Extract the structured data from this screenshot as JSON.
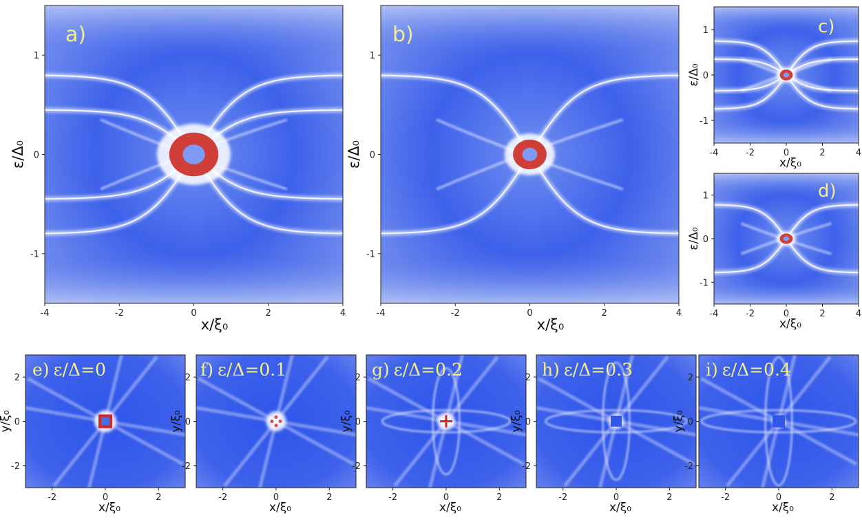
{
  "chart_data": [
    {
      "type": "heatmap",
      "panel": "a)",
      "xlabel": "x/ξ₀",
      "ylabel": "ε/Δ₀",
      "xlim": [
        -4,
        4
      ],
      "ylim": [
        -1.5,
        1.5
      ],
      "xticks": [
        "-4",
        "-2",
        "0",
        "2",
        "4"
      ],
      "yticks": [
        "1",
        "0",
        "-1"
      ],
      "bright_features": [
        {
          "shape": "eye",
          "cut": 0.8
        },
        {
          "shape": "eye",
          "cut": 0.45
        }
      ],
      "center_red_region_extent": 0.22
    },
    {
      "type": "heatmap",
      "panel": "b)",
      "xlabel": "x/ξ₀",
      "ylabel": "ε/Δ₀",
      "xlim": [
        -4,
        4
      ],
      "ylim": [
        -1.5,
        1.5
      ],
      "xticks": [
        "-4",
        "-2",
        "0",
        "2",
        "4"
      ],
      "yticks": [
        "1",
        "0",
        "-1"
      ],
      "bright_features": [
        {
          "shape": "eye",
          "cut": 0.8
        }
      ],
      "center_red_region_extent": 0.15
    },
    {
      "type": "heatmap",
      "panel": "c)",
      "xlabel": "x/ξ₀",
      "ylabel": "ε/Δ₀",
      "xlim": [
        -4,
        4
      ],
      "ylim": [
        -1.5,
        1.5
      ],
      "xticks": [
        "-4",
        "-2",
        "0",
        "2",
        "4"
      ],
      "yticks": [
        "1",
        "0",
        "-1"
      ],
      "bright_features": [
        {
          "shape": "eye",
          "cut": 0.75
        },
        {
          "shape": "eye",
          "cut": 0.35
        }
      ],
      "center_red_region_extent": 0.12
    },
    {
      "type": "heatmap",
      "panel": "d)",
      "xlabel": "x/ξ₀",
      "ylabel": "ε/Δ₀",
      "xlim": [
        -4,
        4
      ],
      "ylim": [
        -1.5,
        1.5
      ],
      "xticks": [
        "-4",
        "-2",
        "0",
        "2",
        "4"
      ],
      "yticks": [
        "1",
        "0",
        "-1"
      ],
      "bright_features": [
        {
          "shape": "eye",
          "cut": 0.78
        }
      ],
      "center_red_region_extent": 0.12
    },
    {
      "type": "heatmap",
      "panel": "e)",
      "label": "ε/Δ=0",
      "energy": 0,
      "xlabel": "x/ξ₀",
      "ylabel": "y/ξ₀",
      "xlim": [
        -3,
        3
      ],
      "ylim": [
        -3,
        3
      ],
      "xticks": [
        "-2",
        "0",
        "2"
      ],
      "yticks": [
        "2",
        "0",
        "-2"
      ],
      "center": "red ring around blue core"
    },
    {
      "type": "heatmap",
      "panel": "f)",
      "label": "ε/Δ=0.1",
      "energy": 0.1,
      "xlabel": "x/ξ₀",
      "ylabel": "y/ξ₀",
      "xlim": [
        -3,
        3
      ],
      "ylim": [
        -3,
        3
      ],
      "xticks": [
        "-2",
        "0",
        "2"
      ],
      "yticks": [
        "2",
        "0",
        "-2"
      ],
      "center": "faint red dots"
    },
    {
      "type": "heatmap",
      "panel": "g)",
      "label": "ε/Δ=0.2",
      "energy": 0.2,
      "xlabel": "x/ξ₀",
      "ylabel": "y/ξ₀",
      "xlim": [
        -3,
        3
      ],
      "ylim": [
        -3,
        3
      ],
      "xticks": [
        "-2",
        "0",
        "2"
      ],
      "yticks": [
        "2",
        "0",
        "-2"
      ],
      "center": "red cross"
    },
    {
      "type": "heatmap",
      "panel": "h)",
      "label": "ε/Δ=0.3",
      "energy": 0.3,
      "xlabel": "x/ξ₀",
      "ylabel": "y/ξ₀",
      "xlim": [
        -3,
        3
      ],
      "ylim": [
        -3,
        3
      ],
      "xticks": [
        "-2",
        "0",
        "2"
      ],
      "yticks": [
        "2",
        "0",
        "-2"
      ],
      "center": "blue core"
    },
    {
      "type": "heatmap",
      "panel": "i)",
      "label": "ε/Δ=0.4",
      "energy": 0.4,
      "xlabel": "x/ξ₀",
      "ylabel": "y/ξ₀",
      "xlim": [
        -3,
        3
      ],
      "ylim": [
        -3,
        3
      ],
      "xticks": [
        "-2",
        "0",
        "2"
      ],
      "yticks": [
        "2",
        "0",
        "-2"
      ],
      "center": "blue core"
    }
  ],
  "colors": {
    "base": "#3f63ea",
    "bright": "#ffffff",
    "peak": "#cc2a22",
    "label": "#f2ef86"
  }
}
